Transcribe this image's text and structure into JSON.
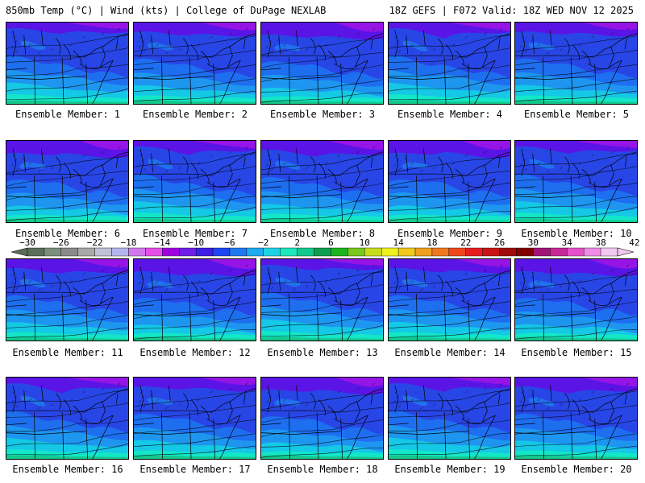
{
  "header": {
    "left": "850mb Temp (°C) | Wind (kts) | College of DuPage NEXLAB",
    "right": "18Z GEFS | F072 Valid: 18Z WED NOV 12 2025"
  },
  "members": [
    "Ensemble Member: 1",
    "Ensemble Member: 2",
    "Ensemble Member: 3",
    "Ensemble Member: 4",
    "Ensemble Member: 5",
    "Ensemble Member: 6",
    "Ensemble Member: 7",
    "Ensemble Member: 8",
    "Ensemble Member: 9",
    "Ensemble Member: 10",
    "Ensemble Member: 11",
    "Ensemble Member: 12",
    "Ensemble Member: 13",
    "Ensemble Member: 14",
    "Ensemble Member: 15",
    "Ensemble Member: 16",
    "Ensemble Member: 17",
    "Ensemble Member: 18",
    "Ensemble Member: 19",
    "Ensemble Member: 20"
  ],
  "colorbar": {
    "labels": [
      "−30",
      "−26",
      "−22",
      "−18",
      "−14",
      "−10",
      "−6",
      "−2",
      "2",
      "6",
      "10",
      "14",
      "18",
      "22",
      "26",
      "30",
      "34",
      "38",
      "42"
    ],
    "colors": [
      "#5a6e5a",
      "#7d8e7d",
      "#8a8a8a",
      "#a8a8a8",
      "#c0c0d8",
      "#b4b4ee",
      "#d278ee",
      "#e84ee8",
      "#a000e0",
      "#6e1ee6",
      "#3c1ee6",
      "#1e46f0",
      "#1e78f0",
      "#1eaaf0",
      "#1ed2e6",
      "#1ee6be",
      "#12c88c",
      "#0ea050",
      "#1eb41e",
      "#78c81e",
      "#c8dc1e",
      "#f0f01e",
      "#f0c81e",
      "#f0a01e",
      "#f0781e",
      "#f0461e",
      "#e61e1e",
      "#c81414",
      "#a00a0a",
      "#820000",
      "#a01478",
      "#c82896",
      "#e650c8",
      "#f08ce6",
      "#f0c8f0"
    ]
  },
  "map_colors": {
    "dark_purple": "#5a14e6",
    "magenta": "#9614e6",
    "blue": "#2846e6",
    "mid_blue": "#1e6ef0",
    "light_blue": "#1e96f0",
    "cyan": "#14c8e6",
    "aqua": "#14e6c8",
    "teal": "#14c88c"
  }
}
